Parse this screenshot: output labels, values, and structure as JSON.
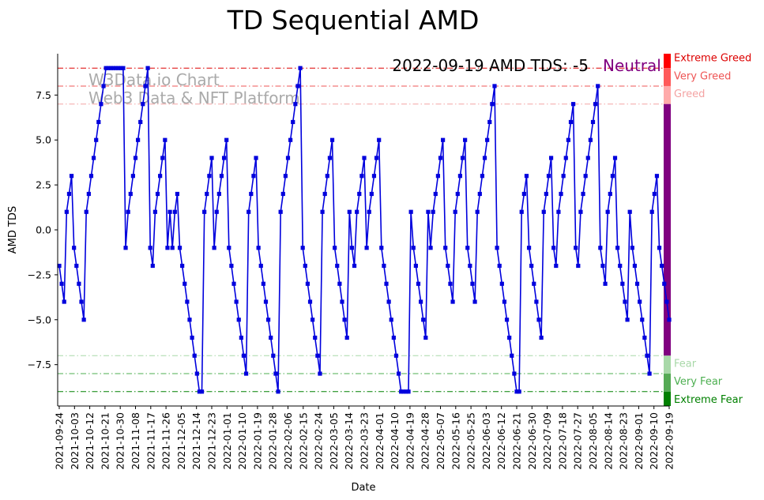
{
  "chart_data": {
    "type": "line",
    "title": "TD Sequential AMD",
    "xlabel": "Date",
    "ylabel": "AMD TDS",
    "annotation": "2022-09-19 AMD TDS: -5",
    "status_label": "Neutral",
    "watermark": [
      "W3Data.io Chart",
      "Web3 Data & NFT Platform"
    ],
    "ylim": [
      -9.8,
      9.8
    ],
    "y_ticks": [
      -7.5,
      -5.0,
      -2.5,
      0.0,
      2.5,
      5.0,
      7.5
    ],
    "y_tick_labels": [
      "−7.5",
      "−5.0",
      "−2.5",
      "0.0",
      "2.5",
      "5.0",
      "7.5"
    ],
    "x_ticks": [
      "2021-09-24",
      "2021-10-03",
      "2021-10-12",
      "2021-10-21",
      "2021-10-30",
      "2021-11-08",
      "2021-11-17",
      "2021-11-26",
      "2021-12-05",
      "2021-12-14",
      "2021-12-23",
      "2022-01-01",
      "2022-01-10",
      "2022-01-19",
      "2022-01-28",
      "2022-02-06",
      "2022-02-15",
      "2022-02-24",
      "2022-03-05",
      "2022-03-14",
      "2022-03-23",
      "2022-04-01",
      "2022-04-10",
      "2022-04-19",
      "2022-04-28",
      "2022-05-07",
      "2022-05-16",
      "2022-05-25",
      "2022-06-03",
      "2022-06-12",
      "2022-06-21",
      "2022-06-30",
      "2022-07-09",
      "2022-07-18",
      "2022-07-27",
      "2022-08-05",
      "2022-08-14",
      "2022-08-23",
      "2022-09-01",
      "2022-09-10",
      "2022-09-19"
    ],
    "x_range": [
      "2021-09-24",
      "2022-09-19"
    ],
    "series": [
      {
        "color": "#0000dd",
        "values": [
          -2,
          -3,
          -4,
          1,
          2,
          3,
          -1,
          -2,
          -3,
          -4,
          -5,
          1,
          2,
          3,
          4,
          5,
          6,
          7,
          8,
          9,
          9,
          9,
          9,
          9,
          9,
          9,
          9,
          -1,
          1,
          2,
          3,
          4,
          5,
          6,
          7,
          8,
          9,
          -1,
          -2,
          1,
          2,
          3,
          4,
          5,
          -1,
          1,
          -1,
          1,
          2,
          -1,
          -2,
          -3,
          -4,
          -5,
          -6,
          -7,
          -8,
          -9,
          -9,
          1,
          2,
          3,
          4,
          -1,
          1,
          2,
          3,
          4,
          5,
          -1,
          -2,
          -3,
          -4,
          -5,
          -6,
          -7,
          -8,
          1,
          2,
          3,
          4,
          -1,
          -2,
          -3,
          -4,
          -5,
          -6,
          -7,
          -8,
          -9,
          1,
          2,
          3,
          4,
          5,
          6,
          7,
          8,
          9,
          -1,
          -2,
          -3,
          -4,
          -5,
          -6,
          -7,
          -8,
          1,
          2,
          3,
          4,
          5,
          -1,
          -2,
          -3,
          -4,
          -5,
          -6,
          1,
          -1,
          -2,
          1,
          2,
          3,
          4,
          -1,
          1,
          2,
          3,
          4,
          5,
          -1,
          -2,
          -3,
          -4,
          -5,
          -6,
          -7,
          -8,
          -9,
          -9,
          -9,
          -9,
          1,
          -1,
          -2,
          -3,
          -4,
          -5,
          -6,
          1,
          -1,
          1,
          2,
          3,
          4,
          5,
          -1,
          -2,
          -3,
          -4,
          1,
          2,
          3,
          4,
          5,
          -1,
          -2,
          -3,
          -4,
          1,
          2,
          3,
          4,
          5,
          6,
          7,
          8,
          -1,
          -2,
          -3,
          -4,
          -5,
          -6,
          -7,
          -8,
          -9,
          -9,
          1,
          2,
          3,
          -1,
          -2,
          -3,
          -4,
          -5,
          -6,
          1,
          2,
          3,
          4,
          -1,
          -2,
          1,
          2,
          3,
          4,
          5,
          6,
          7,
          -1,
          -2,
          1,
          2,
          3,
          4,
          5,
          6,
          7,
          8,
          -1,
          -2,
          -3,
          1,
          2,
          3,
          4,
          -1,
          -2,
          -3,
          -4,
          -5,
          1,
          -1,
          -2,
          -3,
          -4,
          -5,
          -6,
          -7,
          -8,
          1,
          2,
          3,
          -1,
          -2,
          -3,
          -4,
          -5
        ]
      }
    ],
    "thresholds": [
      {
        "value": 9,
        "color": "#dd0000",
        "label": "Extreme Greed"
      },
      {
        "value": 8,
        "color": "#ee5555",
        "label": "Very Greed"
      },
      {
        "value": 7,
        "color": "#f4a3a3",
        "label": "Greed"
      },
      {
        "value": -7,
        "color": "#a8d8a8",
        "label": "Fear"
      },
      {
        "value": -8,
        "color": "#4caf50",
        "label": "Very Fear"
      },
      {
        "value": -9,
        "color": "#008000",
        "label": "Extreme Fear"
      }
    ],
    "zones": [
      {
        "from": 9,
        "to": 9.8,
        "color": "#ff0000"
      },
      {
        "from": 8,
        "to": 9,
        "color": "#ff5a5a"
      },
      {
        "from": 7,
        "to": 8,
        "color": "#ffaaaa"
      },
      {
        "from": -7,
        "to": 7,
        "color": "#800080"
      },
      {
        "from": -8,
        "to": -7,
        "color": "#a8d8a8"
      },
      {
        "from": -9,
        "to": -8,
        "color": "#55aa55"
      },
      {
        "from": -9.8,
        "to": -9,
        "color": "#008000"
      }
    ],
    "grid": false,
    "legend": "none"
  }
}
